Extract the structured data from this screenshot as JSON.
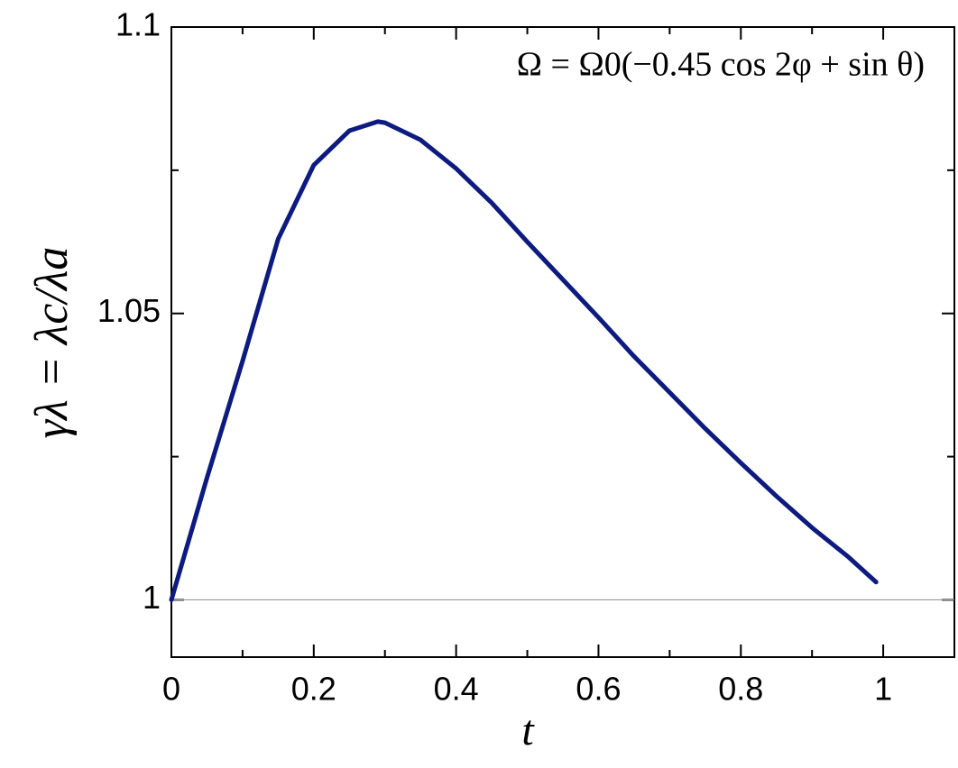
{
  "chart_data": {
    "type": "line",
    "x": [
      0,
      0.05,
      0.1,
      0.15,
      0.2,
      0.25,
      0.29,
      0.3,
      0.35,
      0.4,
      0.45,
      0.5,
      0.55,
      0.6,
      0.65,
      0.7,
      0.75,
      0.8,
      0.85,
      0.9,
      0.95,
      0.99
    ],
    "series": [
      {
        "color": "#0d1a80",
        "values": [
          1.0,
          1.0213,
          1.0417,
          1.063,
          1.0759,
          1.0819,
          1.0835,
          1.0833,
          1.0803,
          1.0753,
          1.0693,
          1.0625,
          1.0559,
          1.0493,
          1.0425,
          1.0362,
          1.0299,
          1.0239,
          1.0181,
          1.0126,
          1.0076,
          1.0031
        ]
      }
    ],
    "xlim": [
      0,
      1.1
    ],
    "ylim": [
      0.99,
      1.1
    ],
    "xticks": [
      0,
      0.2,
      0.4,
      0.6,
      0.8,
      1
    ],
    "yticks": [
      1,
      1.05,
      1.1
    ],
    "xminorticks": [
      0.1,
      0.3,
      0.5,
      0.7,
      0.9
    ],
    "yminorticks": [
      1.025,
      1.075
    ],
    "hline": 1,
    "xlabel": "t",
    "ylabel": "γλ = λc/λa",
    "annotation": "Ω = Ω0(−0.45 cos 2φ + sin θ)"
  }
}
